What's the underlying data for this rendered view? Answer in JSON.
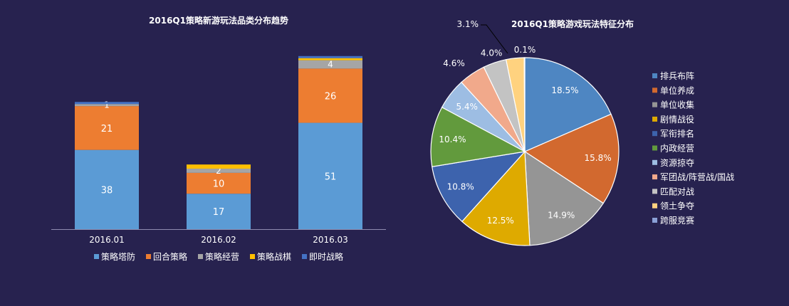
{
  "colors": {
    "background": "#27224f",
    "axis": "#8f8cb0",
    "text": "#ffffff"
  },
  "chart_data": [
    {
      "type": "bar",
      "stacked": true,
      "title": "2016Q1策略新游玩法品类分布趋势",
      "categories": [
        "2016.01",
        "2016.02",
        "2016.03"
      ],
      "series": [
        {
          "name": "策略塔防",
          "color": "#5b9bd5",
          "values": [
            38,
            17,
            51
          ],
          "labels": [
            "38",
            "17",
            "51"
          ]
        },
        {
          "name": "回合策略",
          "color": "#ed7d31",
          "values": [
            21,
            10,
            26
          ],
          "labels": [
            "21",
            "10",
            "26"
          ]
        },
        {
          "name": "策略经营",
          "color": "#a5a5a5",
          "values": [
            1,
            2,
            4
          ],
          "labels": [
            "1",
            "2",
            "4"
          ]
        },
        {
          "name": "策略战棋",
          "color": "#ffc000",
          "values": [
            0,
            2,
            1
          ],
          "labels": [
            "",
            "",
            ""
          ]
        },
        {
          "name": "即时战略",
          "color": "#4472c4",
          "values": [
            1,
            0,
            1
          ],
          "labels": [
            "",
            "",
            ""
          ]
        }
      ],
      "legend_position": "bottom",
      "ylim": [
        0,
        86
      ]
    },
    {
      "type": "pie",
      "title": "2016Q1策略游戏玩法特征分布",
      "slices": [
        {
          "name": "排兵布阵",
          "value": 18.5,
          "label": "18.5%",
          "color": "#4e86c2"
        },
        {
          "name": "单位养成",
          "value": 15.8,
          "label": "15.8%",
          "color": "#d2692f"
        },
        {
          "name": "单位收集",
          "value": 14.9,
          "label": "14.9%",
          "color": "#959595"
        },
        {
          "name": "剧情战役",
          "value": 12.5,
          "label": "12.5%",
          "color": "#deaa00"
        },
        {
          "name": "军衔排名",
          "value": 10.8,
          "label": "10.8%",
          "color": "#3d63ad"
        },
        {
          "name": "内政经营",
          "value": 10.4,
          "label": "10.4%",
          "color": "#629a3d"
        },
        {
          "name": "资源掠夺",
          "value": 5.4,
          "label": "5.4%",
          "color": "#9dbde3"
        },
        {
          "name": "军团战/阵营战/国战",
          "value": 4.6,
          "label": "4.6%",
          "color": "#f1a98b"
        },
        {
          "name": "匹配对战",
          "value": 4.0,
          "label": "4.0%",
          "color": "#c3c3c3"
        },
        {
          "name": "领土争夺",
          "value": 3.1,
          "label": "3.1%",
          "color": "#ffd27f"
        },
        {
          "name": "跨服竞赛",
          "value": 0.1,
          "label": "0.1%",
          "color": "#8aa0d6"
        }
      ],
      "legend_position": "right"
    }
  ]
}
